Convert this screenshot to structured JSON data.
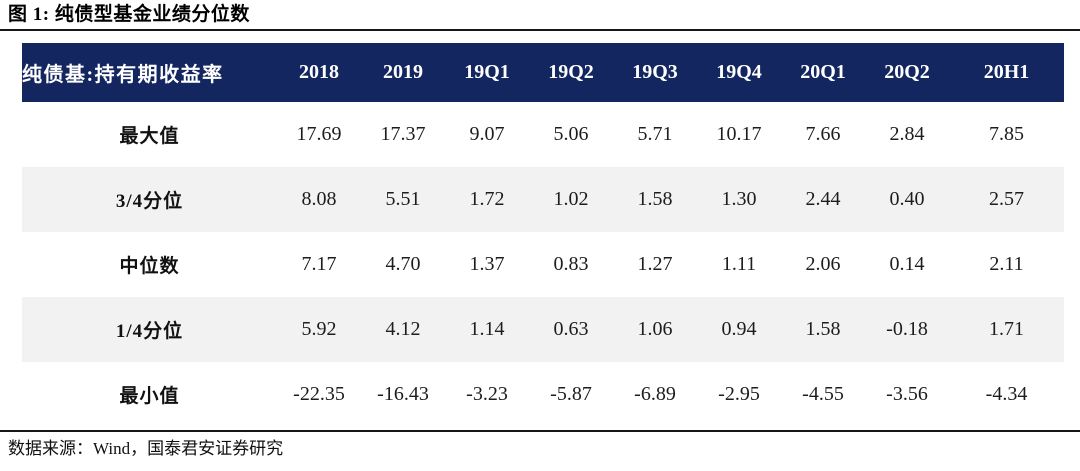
{
  "figure": {
    "title": "图 1: 纯债型基金业绩分位数",
    "source": "数据来源：Wind，国泰君安证券研究"
  },
  "chart_data": {
    "type": "table",
    "title": "图 1: 纯债型基金业绩分位数",
    "corner_label": "纯债基:持有期收益率",
    "columns": [
      "2018",
      "2019",
      "19Q1",
      "19Q2",
      "19Q3",
      "19Q4",
      "20Q1",
      "20Q2",
      "20H1"
    ],
    "rows": [
      {
        "label": "最大值",
        "values": [
          17.69,
          17.37,
          9.07,
          5.06,
          5.71,
          10.17,
          7.66,
          2.84,
          7.85
        ]
      },
      {
        "label": "3/4分位",
        "values": [
          8.08,
          5.51,
          1.72,
          1.02,
          1.58,
          1.3,
          2.44,
          0.4,
          2.57
        ]
      },
      {
        "label": "中位数",
        "values": [
          7.17,
          4.7,
          1.37,
          0.83,
          1.27,
          1.11,
          2.06,
          0.14,
          2.11
        ]
      },
      {
        "label": "1/4分位",
        "values": [
          5.92,
          4.12,
          1.14,
          0.63,
          1.06,
          0.94,
          1.58,
          -0.18,
          1.71
        ]
      },
      {
        "label": "最小值",
        "values": [
          -22.35,
          -16.43,
          -3.23,
          -5.87,
          -6.89,
          -2.95,
          -4.55,
          -3.56,
          -4.34
        ]
      }
    ],
    "value_decimals": 2,
    "source": "数据来源：Wind，国泰君安证券研究"
  },
  "colors": {
    "header_bg": "#13265f",
    "header_text": "#ffffff",
    "stripe_bg": "#f2f2f2",
    "body_text": "#1d1d1f"
  }
}
